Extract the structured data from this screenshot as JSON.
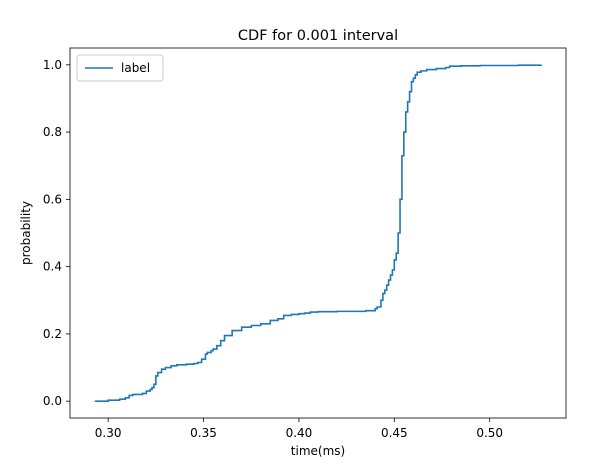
{
  "chart_data": {
    "type": "line",
    "title": "CDF for 0.001 interval",
    "xlabel": "time(ms)",
    "ylabel": "probability",
    "xlim": [
      0.28,
      0.54
    ],
    "ylim": [
      -0.05,
      1.05
    ],
    "xticks": [
      0.3,
      0.35,
      0.4,
      0.45,
      0.5
    ],
    "xtick_labels": [
      "0.30",
      "0.35",
      "0.40",
      "0.45",
      "0.50"
    ],
    "yticks": [
      0.0,
      0.2,
      0.4,
      0.6,
      0.8,
      1.0
    ],
    "ytick_labels": [
      "0.0",
      "0.2",
      "0.4",
      "0.6",
      "0.8",
      "1.0"
    ],
    "grid": false,
    "legend_position": "top-left",
    "series": [
      {
        "name": "label",
        "color": "#1f77b4",
        "x": [
          0.293,
          0.3,
          0.306,
          0.309,
          0.311,
          0.313,
          0.318,
          0.32,
          0.322,
          0.323,
          0.324,
          0.325,
          0.326,
          0.328,
          0.33,
          0.333,
          0.336,
          0.341,
          0.345,
          0.347,
          0.349,
          0.351,
          0.352,
          0.354,
          0.355,
          0.357,
          0.359,
          0.361,
          0.365,
          0.37,
          0.375,
          0.38,
          0.385,
          0.389,
          0.392,
          0.396,
          0.4,
          0.403,
          0.406,
          0.41,
          0.42,
          0.435,
          0.44,
          0.441,
          0.443,
          0.444,
          0.445,
          0.446,
          0.447,
          0.448,
          0.449,
          0.45,
          0.451,
          0.452,
          0.453,
          0.454,
          0.455,
          0.456,
          0.457,
          0.458,
          0.459,
          0.46,
          0.461,
          0.462,
          0.464,
          0.467,
          0.472,
          0.477,
          0.479,
          0.485,
          0.495,
          0.505,
          0.515,
          0.527
        ],
        "y": [
          0.0,
          0.003,
          0.006,
          0.01,
          0.017,
          0.02,
          0.023,
          0.03,
          0.035,
          0.04,
          0.05,
          0.075,
          0.085,
          0.095,
          0.1,
          0.105,
          0.108,
          0.11,
          0.112,
          0.115,
          0.125,
          0.14,
          0.145,
          0.15,
          0.155,
          0.165,
          0.18,
          0.195,
          0.21,
          0.22,
          0.225,
          0.23,
          0.24,
          0.245,
          0.255,
          0.258,
          0.26,
          0.262,
          0.265,
          0.266,
          0.267,
          0.269,
          0.275,
          0.28,
          0.3,
          0.32,
          0.33,
          0.345,
          0.36,
          0.375,
          0.39,
          0.42,
          0.44,
          0.5,
          0.6,
          0.73,
          0.8,
          0.86,
          0.89,
          0.92,
          0.95,
          0.96,
          0.97,
          0.978,
          0.982,
          0.986,
          0.989,
          0.992,
          0.996,
          0.997,
          0.998,
          0.998,
          0.999,
          1.0
        ]
      }
    ]
  }
}
